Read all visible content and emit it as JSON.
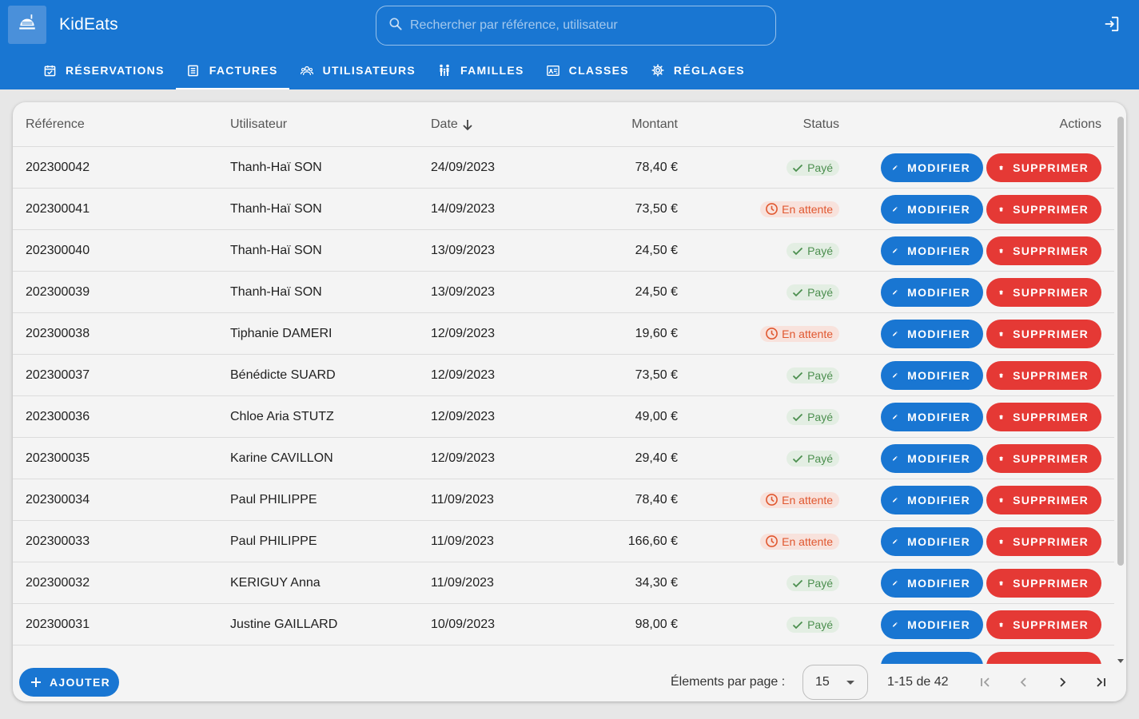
{
  "app": {
    "title": "KidEats"
  },
  "search": {
    "placeholder": "Rechercher par référence, utilisateur"
  },
  "tabs": [
    {
      "label": "RÉSERVATIONS",
      "icon": "calendar-check-icon",
      "active": false
    },
    {
      "label": "FACTURES",
      "icon": "receipt-icon",
      "active": true
    },
    {
      "label": "UTILISATEURS",
      "icon": "users-icon",
      "active": false
    },
    {
      "label": "FAMILLES",
      "icon": "family-icon",
      "active": false
    },
    {
      "label": "CLASSES",
      "icon": "classroom-icon",
      "active": false
    },
    {
      "label": "RÉGLAGES",
      "icon": "gear-icon",
      "active": false
    }
  ],
  "table": {
    "headers": {
      "reference": "Référence",
      "user": "Utilisateur",
      "date": "Date",
      "amount": "Montant",
      "status": "Status",
      "actions": "Actions"
    },
    "edit_label": "MODIFIER",
    "delete_label": "SUPPRIMER",
    "status_labels": {
      "paid": "Payé",
      "pending": "En attente"
    },
    "rows": [
      {
        "reference": "202300042",
        "user": "Thanh-Haï SON",
        "date": "24/09/2023",
        "amount": "78,40 €",
        "status": "paid"
      },
      {
        "reference": "202300041",
        "user": "Thanh-Haï SON",
        "date": "14/09/2023",
        "amount": "73,50 €",
        "status": "pending"
      },
      {
        "reference": "202300040",
        "user": "Thanh-Haï SON",
        "date": "13/09/2023",
        "amount": "24,50 €",
        "status": "paid"
      },
      {
        "reference": "202300039",
        "user": "Thanh-Haï SON",
        "date": "13/09/2023",
        "amount": "24,50 €",
        "status": "paid"
      },
      {
        "reference": "202300038",
        "user": "Tiphanie DAMERI",
        "date": "12/09/2023",
        "amount": "19,60 €",
        "status": "pending"
      },
      {
        "reference": "202300037",
        "user": "Bénédicte SUARD",
        "date": "12/09/2023",
        "amount": "73,50 €",
        "status": "paid"
      },
      {
        "reference": "202300036",
        "user": "Chloe Aria STUTZ",
        "date": "12/09/2023",
        "amount": "49,00 €",
        "status": "paid"
      },
      {
        "reference": "202300035",
        "user": "Karine CAVILLON",
        "date": "12/09/2023",
        "amount": "29,40 €",
        "status": "paid"
      },
      {
        "reference": "202300034",
        "user": "Paul PHILIPPE",
        "date": "11/09/2023",
        "amount": "78,40 €",
        "status": "pending"
      },
      {
        "reference": "202300033",
        "user": "Paul PHILIPPE",
        "date": "11/09/2023",
        "amount": "166,60 €",
        "status": "pending"
      },
      {
        "reference": "202300032",
        "user": "KERIGUY Anna",
        "date": "11/09/2023",
        "amount": "34,30 €",
        "status": "paid"
      },
      {
        "reference": "202300031",
        "user": "Justine GAILLARD",
        "date": "10/09/2023",
        "amount": "98,00 €",
        "status": "paid"
      }
    ]
  },
  "footer": {
    "add_label": "AJOUTER",
    "per_page_label": "Élements par page :",
    "per_page_value": "15",
    "range_label": "1-15 de 42"
  },
  "colors": {
    "primary": "#1976d2",
    "danger": "#e53935",
    "paid": "#4c8f4f",
    "pending": "#e0572f"
  }
}
